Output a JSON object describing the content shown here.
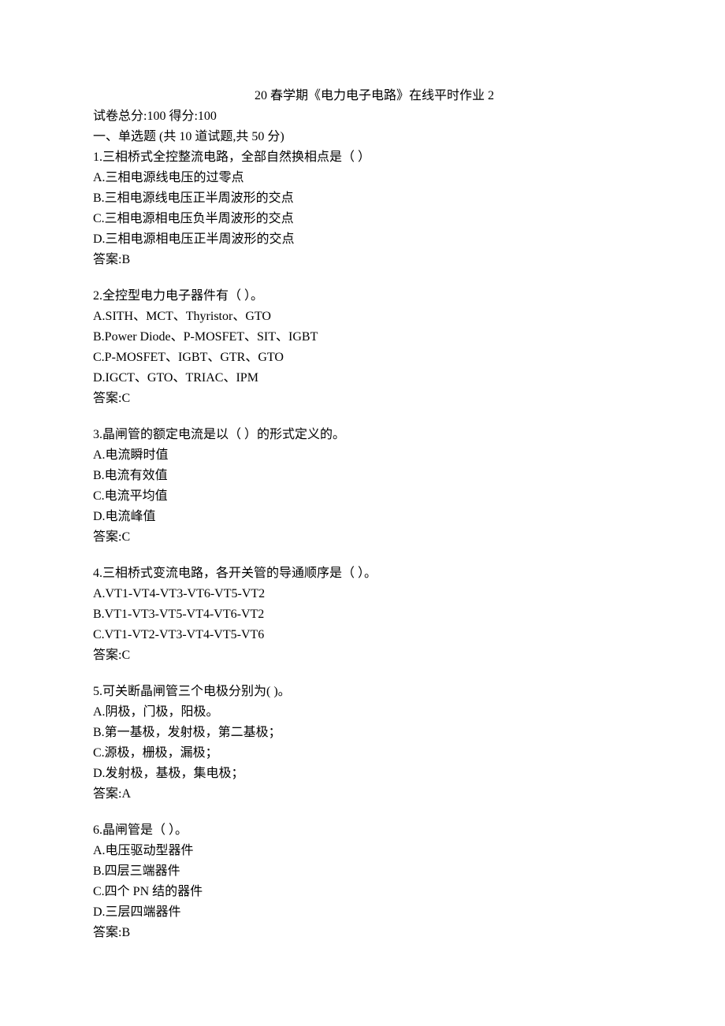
{
  "title": "20 春学期《电力电子电路》在线平时作业 2",
  "scoreLine": "试卷总分:100  得分:100",
  "sectionHeader": "一、单选题 (共 10 道试题,共 50 分)",
  "questions": [
    {
      "text": "1.三相桥式全控整流电路，全部自然换相点是（    ）",
      "options": [
        "A.三相电源线电压的过零点",
        "B.三相电源线电压正半周波形的交点",
        "C.三相电源相电压负半周波形的交点",
        "D.三相电源相电压正半周波形的交点"
      ],
      "answer": "答案:B"
    },
    {
      "text": "2.全控型电力电子器件有（    ）。",
      "options": [
        "A.SITH、MCT、Thyristor、GTO",
        "B.Power Diode、P-MOSFET、SIT、IGBT",
        "C.P-MOSFET、IGBT、GTR、GTO",
        "D.IGCT、GTO、TRIAC、IPM"
      ],
      "answer": "答案:C"
    },
    {
      "text": "3.晶闸管的额定电流是以（   ）的形式定义的。",
      "options": [
        "A.电流瞬时值",
        "B.电流有效值",
        "C.电流平均值",
        "D.电流峰值"
      ],
      "answer": "答案:C"
    },
    {
      "text": "4.三相桥式变流电路，各开关管的导通顺序是（     ）。",
      "options": [
        "A.VT1-VT4-VT3-VT6-VT5-VT2",
        "B.VT1-VT3-VT5-VT4-VT6-VT2",
        "C.VT1-VT2-VT3-VT4-VT5-VT6"
      ],
      "answer": "答案:C"
    },
    {
      "text": "5.可关断晶闸管三个电极分别为(                          )。",
      "options": [
        "A.阴极，门极，阳极。",
        "B.第一基极，发射极，第二基极；",
        "C.源极，栅极，漏极；",
        "D.发射极，基极，集电极；"
      ],
      "answer": "答案:A"
    },
    {
      "text": "6.晶闸管是（                         ）。",
      "options": [
        "A.电压驱动型器件",
        "B.四层三端器件",
        "C.四个 PN 结的器件",
        "D.三层四端器件"
      ],
      "answer": "答案:B"
    }
  ]
}
